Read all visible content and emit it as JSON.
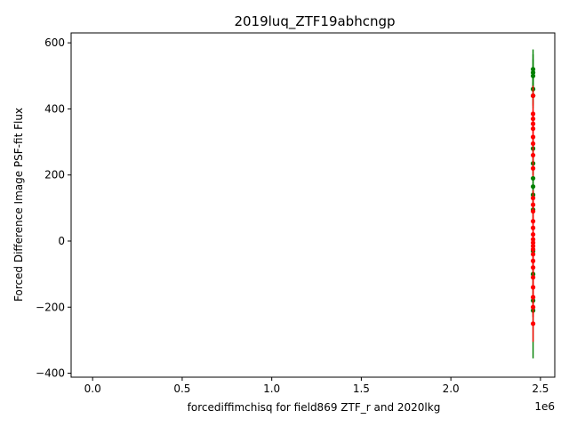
{
  "chart_data": {
    "type": "scatter",
    "title": "2019luq_ZTF19abhcngp",
    "xlabel": "forcediffimchisq for field869 ZTF_r and 2020lkg",
    "ylabel": "Forced Difference Image PSF-fit Flux",
    "x_offset_label": "1e6",
    "xlim": [
      -120000,
      2580000
    ],
    "ylim": [
      -412,
      630
    ],
    "x_ticks": [
      0.0,
      0.5,
      1.0,
      1.5,
      2.0,
      2.5
    ],
    "x_tick_labels": [
      "0.0",
      "0.5",
      "1.0",
      "1.5",
      "2.0",
      "2.5"
    ],
    "y_ticks": [
      -400,
      -200,
      0,
      200,
      400,
      600
    ],
    "y_tick_labels": [
      "−400",
      "−200",
      "0",
      "200",
      "400",
      "600"
    ],
    "grid": false,
    "series": [
      {
        "color": "#008000",
        "points": [
          {
            "x": 2458750,
            "y": 520,
            "err": 60
          },
          {
            "x": 2458755,
            "y": 510,
            "err": 55
          },
          {
            "x": 2458760,
            "y": 500,
            "err": 50
          },
          {
            "x": 2458765,
            "y": 460,
            "err": 45
          },
          {
            "x": 2458770,
            "y": 440,
            "err": 40
          },
          {
            "x": 2458775,
            "y": 280,
            "err": 40
          },
          {
            "x": 2458780,
            "y": 235,
            "err": 35
          },
          {
            "x": 2458785,
            "y": 190,
            "err": 35
          },
          {
            "x": 2458790,
            "y": 165,
            "err": 30
          },
          {
            "x": 2458795,
            "y": 140,
            "err": 30
          },
          {
            "x": 2458800,
            "y": 95,
            "err": 30
          },
          {
            "x": 2458810,
            "y": -30,
            "err": 30
          },
          {
            "x": 2458820,
            "y": -100,
            "err": 40
          },
          {
            "x": 2458830,
            "y": -180,
            "err": 50
          },
          {
            "x": 2458840,
            "y": -210,
            "err": 145
          }
        ]
      },
      {
        "color": "#ff0000",
        "points": [
          {
            "x": 2458752,
            "y": 440,
            "err": 30
          },
          {
            "x": 2458757,
            "y": 385,
            "err": 30
          },
          {
            "x": 2458762,
            "y": 370,
            "err": 28
          },
          {
            "x": 2458767,
            "y": 355,
            "err": 28
          },
          {
            "x": 2458772,
            "y": 340,
            "err": 26
          },
          {
            "x": 2458777,
            "y": 315,
            "err": 26
          },
          {
            "x": 2458782,
            "y": 295,
            "err": 25
          },
          {
            "x": 2458787,
            "y": 260,
            "err": 25
          },
          {
            "x": 2458792,
            "y": 220,
            "err": 24
          },
          {
            "x": 2458797,
            "y": 130,
            "err": 24
          },
          {
            "x": 2458802,
            "y": 110,
            "err": 22
          },
          {
            "x": 2458807,
            "y": 90,
            "err": 22
          },
          {
            "x": 2458812,
            "y": 60,
            "err": 22
          },
          {
            "x": 2458817,
            "y": 40,
            "err": 20
          },
          {
            "x": 2458822,
            "y": 20,
            "err": 20
          },
          {
            "x": 2458827,
            "y": 5,
            "err": 20
          },
          {
            "x": 2458832,
            "y": -5,
            "err": 20
          },
          {
            "x": 2458837,
            "y": -15,
            "err": 20
          },
          {
            "x": 2458842,
            "y": -25,
            "err": 20
          },
          {
            "x": 2458847,
            "y": -40,
            "err": 22
          },
          {
            "x": 2458852,
            "y": -60,
            "err": 22
          },
          {
            "x": 2458857,
            "y": -80,
            "err": 24
          },
          {
            "x": 2458862,
            "y": -110,
            "err": 24
          },
          {
            "x": 2458867,
            "y": -140,
            "err": 26
          },
          {
            "x": 2458872,
            "y": -170,
            "err": 28
          },
          {
            "x": 2458877,
            "y": -200,
            "err": 30
          },
          {
            "x": 2458882,
            "y": -250,
            "err": 55
          }
        ]
      }
    ]
  }
}
